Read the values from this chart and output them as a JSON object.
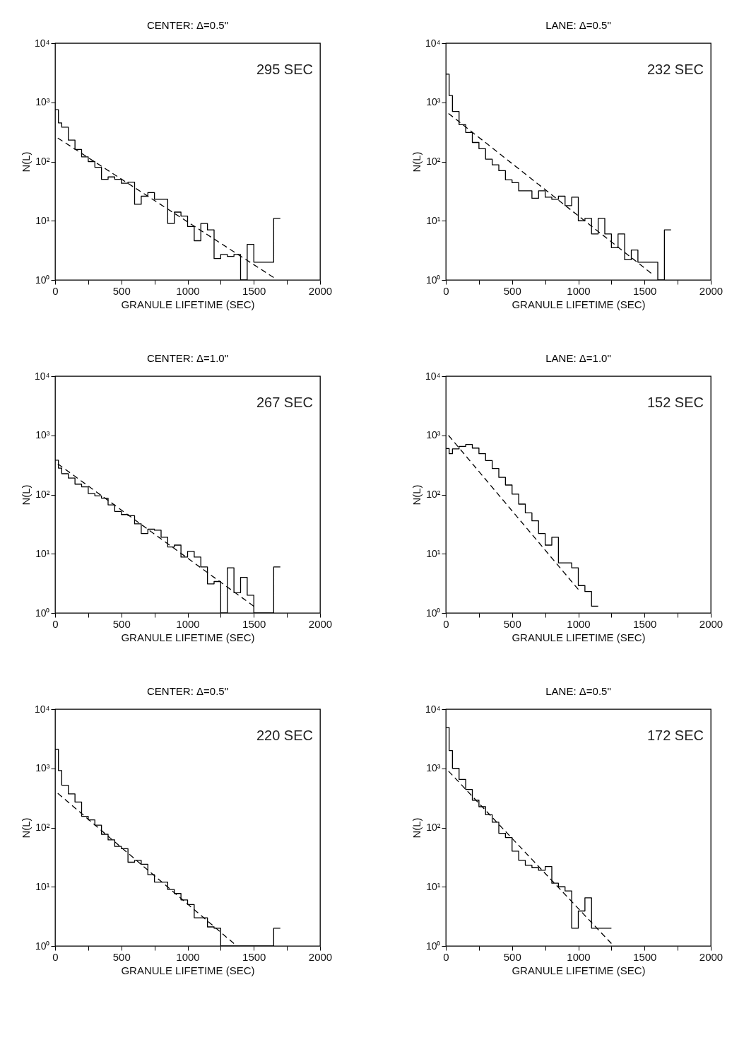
{
  "chart_data": [
    {
      "type": "histogram",
      "title": "CENTER: Δ=0.5\"",
      "xlabel": "GRANULE LIFETIME (SEC)",
      "ylabel": "N(L)",
      "annotations": [
        "295 SEC"
      ],
      "log": true,
      "xlim": [
        0,
        2000
      ],
      "ylim": [
        1,
        10000
      ],
      "xticks": [
        0,
        {
          "value": 250,
          "label": null
        },
        500,
        {
          "value": 750,
          "label": null
        },
        1000,
        {
          "value": 1250,
          "label": null
        },
        1500,
        {
          "value": 1750,
          "label": null
        },
        2000
      ],
      "yticks": [
        {
          "value": 1,
          "label": "10⁰"
        },
        {
          "value": 10,
          "label": "10¹"
        },
        {
          "value": 100,
          "label": "10²"
        },
        {
          "value": 1000,
          "label": "10³"
        },
        {
          "value": 10000,
          "label": "10⁴"
        }
      ],
      "series": [
        {
          "type": "histogram",
          "color": "#000000",
          "bins": [
            0,
            25,
            50,
            100,
            150,
            200,
            250,
            300,
            350,
            400,
            450,
            500,
            550,
            600,
            650,
            700,
            750,
            800,
            850,
            900,
            950,
            1000,
            1050,
            1100,
            1150,
            1200,
            1250,
            1300,
            1350,
            1400,
            1450,
            1500,
            1550,
            1600,
            1650,
            1700
          ],
          "values": [
            750,
            450,
            380,
            230,
            160,
            120,
            100,
            80,
            50,
            55,
            50,
            43,
            45,
            19,
            26,
            30,
            23,
            23,
            9,
            14,
            12,
            8,
            4.6,
            9,
            7,
            2.3,
            2.7,
            2.5,
            2.7,
            null,
            4,
            2,
            2,
            2,
            11
          ]
        },
        {
          "type": "line",
          "color": "#000000",
          "line_style": "dashed",
          "x": [
            20,
            1650
          ],
          "values": [
            250,
            1.1
          ]
        }
      ]
    },
    {
      "type": "histogram",
      "title": "LANE: Δ=0.5\"",
      "xlabel": "GRANULE LIFETIME (SEC)",
      "ylabel": "N(L)",
      "annotations": [
        "232 SEC"
      ],
      "log": true,
      "xlim": [
        0,
        2000
      ],
      "ylim": [
        1,
        10000
      ],
      "xticks": [
        0,
        {
          "value": 250,
          "label": null
        },
        500,
        {
          "value": 750,
          "label": null
        },
        1000,
        {
          "value": 1250,
          "label": null
        },
        1500,
        {
          "value": 1750,
          "label": null
        },
        2000
      ],
      "yticks": [
        {
          "value": 1,
          "label": "10⁰"
        },
        {
          "value": 10,
          "label": "10¹"
        },
        {
          "value": 100,
          "label": "10²"
        },
        {
          "value": 1000,
          "label": "10³"
        },
        {
          "value": 10000,
          "label": "10⁴"
        }
      ],
      "series": [
        {
          "type": "histogram",
          "color": "#000000",
          "bins": [
            0,
            25,
            50,
            100,
            150,
            200,
            250,
            300,
            350,
            400,
            450,
            500,
            550,
            600,
            650,
            700,
            750,
            800,
            850,
            900,
            950,
            1000,
            1050,
            1100,
            1150,
            1200,
            1250,
            1300,
            1350,
            1400,
            1450,
            1500,
            1550,
            1600,
            1650,
            1700
          ],
          "values": [
            3000,
            1300,
            700,
            420,
            310,
            210,
            165,
            110,
            88,
            70,
            49,
            44,
            32,
            32,
            24,
            32,
            25,
            23,
            26,
            18,
            25,
            10,
            11,
            6,
            11,
            6,
            3.5,
            6,
            2.2,
            3.2,
            2,
            2,
            2,
            null,
            7
          ]
        },
        {
          "type": "line",
          "color": "#000000",
          "line_style": "dashed",
          "x": [
            20,
            1550
          ],
          "values": [
            650,
            1.3
          ]
        }
      ]
    },
    {
      "type": "histogram",
      "title": "CENTER: Δ=1.0\"",
      "xlabel": "GRANULE LIFETIME (SEC)",
      "ylabel": "N(L)",
      "annotations": [
        "267 SEC"
      ],
      "log": true,
      "xlim": [
        0,
        2000
      ],
      "ylim": [
        1,
        10000
      ],
      "xticks": [
        0,
        {
          "value": 250,
          "label": null
        },
        500,
        {
          "value": 750,
          "label": null
        },
        1000,
        {
          "value": 1250,
          "label": null
        },
        1500,
        {
          "value": 1750,
          "label": null
        },
        2000
      ],
      "yticks": [
        {
          "value": 1,
          "label": "10⁰"
        },
        {
          "value": 10,
          "label": "10¹"
        },
        {
          "value": 100,
          "label": "10²"
        },
        {
          "value": 1000,
          "label": "10³"
        },
        {
          "value": 10000,
          "label": "10⁴"
        }
      ],
      "series": [
        {
          "type": "histogram",
          "color": "#000000",
          "bins": [
            0,
            25,
            50,
            100,
            150,
            200,
            250,
            300,
            350,
            400,
            450,
            500,
            550,
            600,
            650,
            700,
            750,
            800,
            850,
            900,
            950,
            1000,
            1050,
            1100,
            1150,
            1200,
            1250,
            1300,
            1350,
            1400,
            1450,
            1500,
            1550,
            1600,
            1650,
            1700
          ],
          "values": [
            380,
            280,
            225,
            190,
            150,
            135,
            104,
            95,
            87,
            67,
            52,
            46,
            44,
            32,
            22,
            26,
            25,
            19,
            13,
            14,
            8.8,
            11,
            8.8,
            6,
            3.1,
            3.4,
            null,
            5.8,
            2.2,
            4,
            2,
            null,
            null,
            null,
            6
          ]
        },
        {
          "type": "line",
          "color": "#000000",
          "line_style": "dashed",
          "x": [
            20,
            1500
          ],
          "values": [
            330,
            1.3
          ]
        }
      ]
    },
    {
      "type": "histogram",
      "title": "LANE: Δ=1.0\"",
      "xlabel": "GRANULE LIFETIME (SEC)",
      "ylabel": "N(L)",
      "annotations": [
        "152 SEC"
      ],
      "log": true,
      "xlim": [
        0,
        2000
      ],
      "ylim": [
        1,
        10000
      ],
      "xticks": [
        0,
        {
          "value": 250,
          "label": null
        },
        500,
        {
          "value": 750,
          "label": null
        },
        1000,
        {
          "value": 1250,
          "label": null
        },
        1500,
        {
          "value": 1750,
          "label": null
        },
        2000
      ],
      "yticks": [
        {
          "value": 1,
          "label": "10⁰"
        },
        {
          "value": 10,
          "label": "10¹"
        },
        {
          "value": 100,
          "label": "10²"
        },
        {
          "value": 1000,
          "label": "10³"
        },
        {
          "value": 10000,
          "label": "10⁴"
        }
      ],
      "series": [
        {
          "type": "histogram",
          "color": "#000000",
          "bins": [
            0,
            25,
            50,
            100,
            150,
            200,
            250,
            300,
            350,
            400,
            450,
            500,
            550,
            600,
            650,
            700,
            750,
            800,
            850,
            900,
            950,
            1000,
            1050,
            1100,
            1150
          ],
          "values": [
            600,
            490,
            590,
            650,
            700,
            610,
            490,
            375,
            275,
            195,
            145,
            102,
            69,
            49,
            36,
            22,
            14,
            19,
            7,
            7,
            5.8,
            2.9,
            2.3,
            1.3
          ]
        },
        {
          "type": "line",
          "color": "#000000",
          "line_style": "dashed",
          "x": [
            20,
            1000
          ],
          "values": [
            1000,
            2.5
          ]
        }
      ]
    },
    {
      "type": "histogram",
      "title": "CENTER: Δ=0.5\"",
      "xlabel": "GRANULE LIFETIME (SEC)",
      "ylabel": "N(L)",
      "annotations": [
        "220 SEC"
      ],
      "log": true,
      "xlim": [
        0,
        2000
      ],
      "ylim": [
        1,
        10000
      ],
      "xticks": [
        0,
        {
          "value": 250,
          "label": null
        },
        500,
        {
          "value": 750,
          "label": null
        },
        1000,
        {
          "value": 1250,
          "label": null
        },
        1500,
        {
          "value": 1750,
          "label": null
        },
        2000
      ],
      "yticks": [
        {
          "value": 1,
          "label": "10⁰"
        },
        {
          "value": 10,
          "label": "10¹"
        },
        {
          "value": 100,
          "label": "10²"
        },
        {
          "value": 1000,
          "label": "10³"
        },
        {
          "value": 10000,
          "label": "10⁴"
        }
      ],
      "series": [
        {
          "type": "histogram",
          "color": "#000000",
          "bins": [
            0,
            25,
            50,
            100,
            150,
            200,
            250,
            300,
            350,
            400,
            450,
            500,
            550,
            600,
            650,
            700,
            750,
            800,
            850,
            900,
            950,
            1000,
            1050,
            1100,
            1150,
            1200,
            1250,
            1300,
            1350,
            1400,
            1450,
            1500,
            1550,
            1600,
            1650,
            1700
          ],
          "values": [
            2100,
            920,
            520,
            370,
            270,
            155,
            135,
            110,
            77,
            62,
            48,
            44,
            26,
            28,
            24,
            16,
            12,
            12,
            9,
            7.7,
            6,
            5,
            3,
            3,
            2.1,
            2,
            null,
            null,
            null,
            null,
            null,
            null,
            null,
            null,
            2
          ]
        },
        {
          "type": "line",
          "color": "#000000",
          "line_style": "dashed",
          "x": [
            20,
            1350
          ],
          "values": [
            380,
            1.1
          ]
        }
      ]
    },
    {
      "type": "histogram",
      "title": "LANE: Δ=0.5\"",
      "xlabel": "GRANULE LIFETIME (SEC)",
      "ylabel": "N(L)",
      "annotations": [
        "172 SEC"
      ],
      "log": true,
      "xlim": [
        0,
        2000
      ],
      "ylim": [
        1,
        10000
      ],
      "xticks": [
        0,
        {
          "value": 250,
          "label": null
        },
        500,
        {
          "value": 750,
          "label": null
        },
        1000,
        {
          "value": 1250,
          "label": null
        },
        1500,
        {
          "value": 1750,
          "label": null
        },
        2000
      ],
      "yticks": [
        {
          "value": 1,
          "label": "10⁰"
        },
        {
          "value": 10,
          "label": "10¹"
        },
        {
          "value": 100,
          "label": "10²"
        },
        {
          "value": 1000,
          "label": "10³"
        },
        {
          "value": 10000,
          "label": "10⁴"
        }
      ],
      "series": [
        {
          "type": "histogram",
          "color": "#000000",
          "bins": [
            0,
            25,
            50,
            100,
            150,
            200,
            250,
            300,
            350,
            400,
            450,
            500,
            550,
            600,
            650,
            700,
            750,
            800,
            850,
            900,
            950,
            1000,
            1050,
            1100,
            1150,
            1200,
            1250
          ],
          "values": [
            4900,
            2000,
            1000,
            650,
            440,
            290,
            225,
            165,
            123,
            80,
            68,
            40,
            28,
            23,
            21,
            19,
            22,
            11.5,
            10,
            8.5,
            2,
            3.9,
            6.5,
            2,
            2,
            2
          ]
        },
        {
          "type": "line",
          "color": "#000000",
          "line_style": "dashed",
          "x": [
            20,
            1250
          ],
          "values": [
            900,
            1.1
          ]
        }
      ]
    }
  ]
}
